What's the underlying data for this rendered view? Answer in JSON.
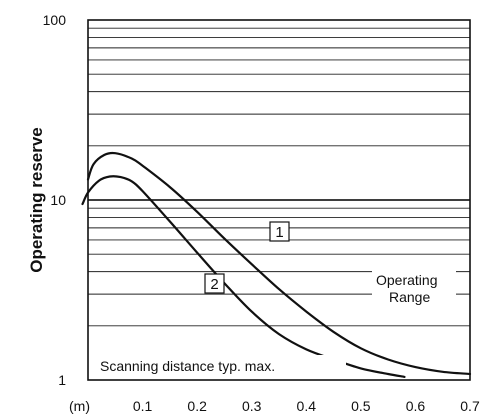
{
  "chart_data": {
    "type": "line",
    "ylabel": "Operating reserve",
    "x_unit_label": "(m)",
    "xlim": [
      0,
      0.7
    ],
    "ylim": [
      1,
      100
    ],
    "y_scale": "log",
    "x_ticks": [
      "0.1",
      "0.2",
      "0.3",
      "0.4",
      "0.5",
      "0.6",
      "0.7"
    ],
    "y_ticks": [
      "1",
      "10",
      "100"
    ],
    "grid": "horizontal",
    "annotations": {
      "operating_range": [
        "Operating",
        "Range"
      ],
      "scanning_distance": "Scanning distance typ. max."
    },
    "series": [
      {
        "label": "1",
        "x": [
          0.0,
          0.01,
          0.03,
          0.05,
          0.08,
          0.1,
          0.15,
          0.2,
          0.25,
          0.3,
          0.35,
          0.4,
          0.45,
          0.5,
          0.55,
          0.6,
          0.65,
          0.7
        ],
        "y": [
          13,
          15.8,
          17.8,
          18.2,
          17,
          15.5,
          11.8,
          8.6,
          6.1,
          4.4,
          3.2,
          2.4,
          1.85,
          1.5,
          1.3,
          1.18,
          1.11,
          1.08
        ]
      },
      {
        "label": "2",
        "x": [
          -0.01,
          0.0,
          0.02,
          0.04,
          0.06,
          0.08,
          0.1,
          0.15,
          0.2,
          0.25,
          0.3,
          0.35,
          0.4,
          0.45,
          0.5,
          0.55,
          0.58
        ],
        "y": [
          9.5,
          11,
          12.8,
          13.5,
          13.4,
          12.7,
          11.2,
          7.6,
          5.1,
          3.45,
          2.4,
          1.8,
          1.48,
          1.3,
          1.16,
          1.08,
          1.04
        ]
      }
    ]
  }
}
